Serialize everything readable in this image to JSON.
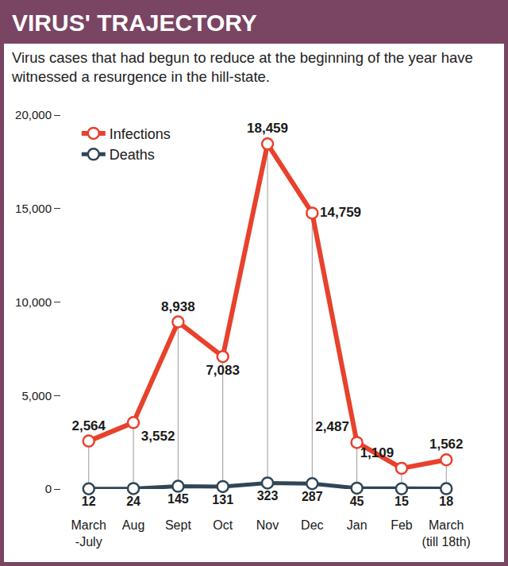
{
  "chart_data": {
    "type": "line",
    "title": "VIRUS' TRAJECTORY",
    "subtitle": "Virus cases that had begun to reduce at the beginning of the year have witnessed a resurgence in the hill-state.",
    "categories": [
      "March-July",
      "Aug",
      "Sept",
      "Oct",
      "Nov",
      "Dec",
      "Jan",
      "Feb",
      "March (till 18th)"
    ],
    "series": [
      {
        "name": "Infections",
        "color": "#e8412c",
        "marker": "circle",
        "values": [
          2564,
          3552,
          8938,
          7083,
          18459,
          14759,
          2487,
          1109,
          1562
        ],
        "value_labels": [
          "2,564",
          "3,552",
          "8,938",
          "7,083",
          "18,459",
          "14,759",
          "2,487",
          "1,109",
          "1,562"
        ]
      },
      {
        "name": "Deaths",
        "color": "#2f4656",
        "marker": "circle",
        "values": [
          12,
          24,
          145,
          131,
          323,
          287,
          45,
          15,
          18
        ]
      }
    ],
    "ylim": [
      0,
      20000
    ],
    "yticks": [
      0,
      {
        "value": 5000,
        "label": "5,000"
      },
      {
        "value": 10000,
        "label": "10,000"
      },
      {
        "value": 15000,
        "label": "15,000"
      },
      {
        "value": 20000,
        "label": "20,000"
      }
    ],
    "grid": false,
    "legend": "upper left",
    "data_labels": true
  }
}
